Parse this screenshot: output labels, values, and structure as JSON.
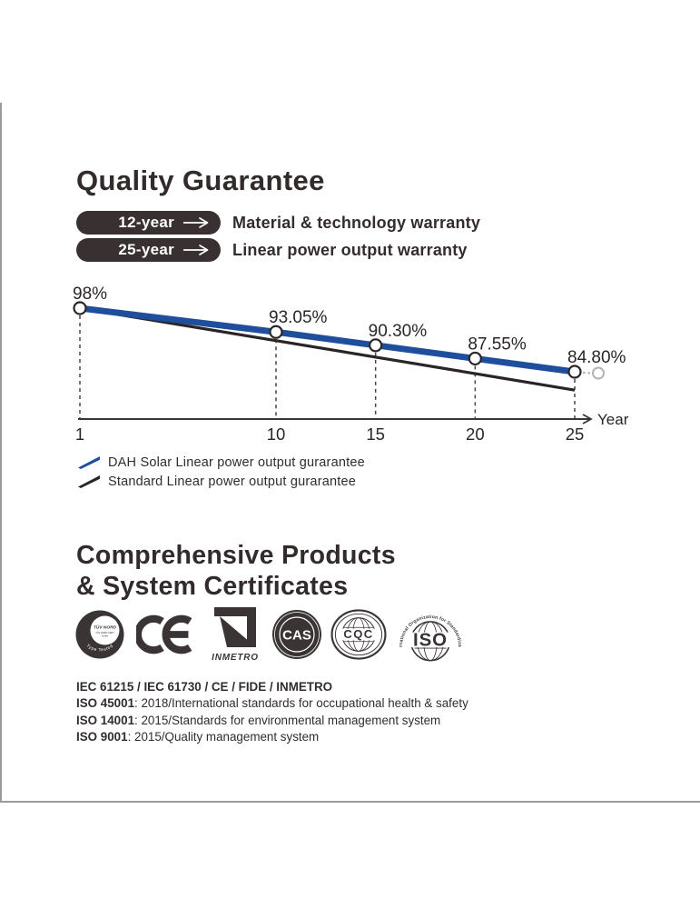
{
  "colors": {
    "accent_blue": "#1f4e9d",
    "ink": "#332c2c",
    "pill_bg": "#393031",
    "page_edge_gray": "#9a9a9a",
    "extension_gray": "#b3b3b3"
  },
  "quality": {
    "title": "Quality Guarantee",
    "badges": [
      {
        "years": "12-year",
        "label": "Material & technology warranty"
      },
      {
        "years": "25-year",
        "label": "Linear power output warranty"
      }
    ]
  },
  "chart_data": {
    "type": "line",
    "x": [
      1,
      10,
      15,
      20,
      25
    ],
    "x_tick_labels": [
      "1",
      "10",
      "15",
      "20",
      "25"
    ],
    "xlabel": "Year",
    "ylim": [
      78,
      100
    ],
    "grid": "dashed vertical droplines at data points",
    "legend_position": "below-left",
    "series": [
      {
        "name": "DAH Solar Linear power output gurarantee",
        "color": "#1f4e9d",
        "x": [
          1,
          10,
          15,
          20,
          25
        ],
        "values": [
          98,
          93.05,
          90.3,
          87.55,
          84.8
        ],
        "point_labels": [
          "98%",
          "93.05%",
          "90.30%",
          "87.55%",
          "84.80%"
        ],
        "marker": "open-circle",
        "extension": "dotted gray tail with open gray circle after year 25"
      },
      {
        "name": "Standard Linear power output gurarantee",
        "color": "#2b2424",
        "x": [
          1,
          25
        ],
        "values": [
          98,
          81
        ],
        "point_labels": [],
        "marker": "none"
      }
    ]
  },
  "certificates": {
    "title_line1": "Comprehensive Products",
    "title_line2": "& System Certificates",
    "logos": [
      "TÜV NORD",
      "CE",
      "INMETRO",
      "CAS",
      "CQC",
      "ISO"
    ],
    "tuv": {
      "line1": "TÜV NORD",
      "line2": "TÜV NORD CERT",
      "line3": "GmbH",
      "arc": "Type Tested"
    },
    "inmetro_label": "INMETRO",
    "cas_label": "CAS",
    "cqc_label": "CQC",
    "iso_label": "ISO",
    "iso_arc": "International Organization for Standardization",
    "lines": [
      {
        "bold": "IEC 61215 / IEC 61730 / CE / FIDE / INMETRO",
        "rest": ""
      },
      {
        "bold": "ISO 45001",
        "rest": ": 2018/International standards for occupational health & safety"
      },
      {
        "bold": "ISO 14001",
        "rest": ": 2015/Standards for environmental management system"
      },
      {
        "bold": "ISO 9001",
        "rest": ": 2015/Quality management system"
      }
    ]
  }
}
